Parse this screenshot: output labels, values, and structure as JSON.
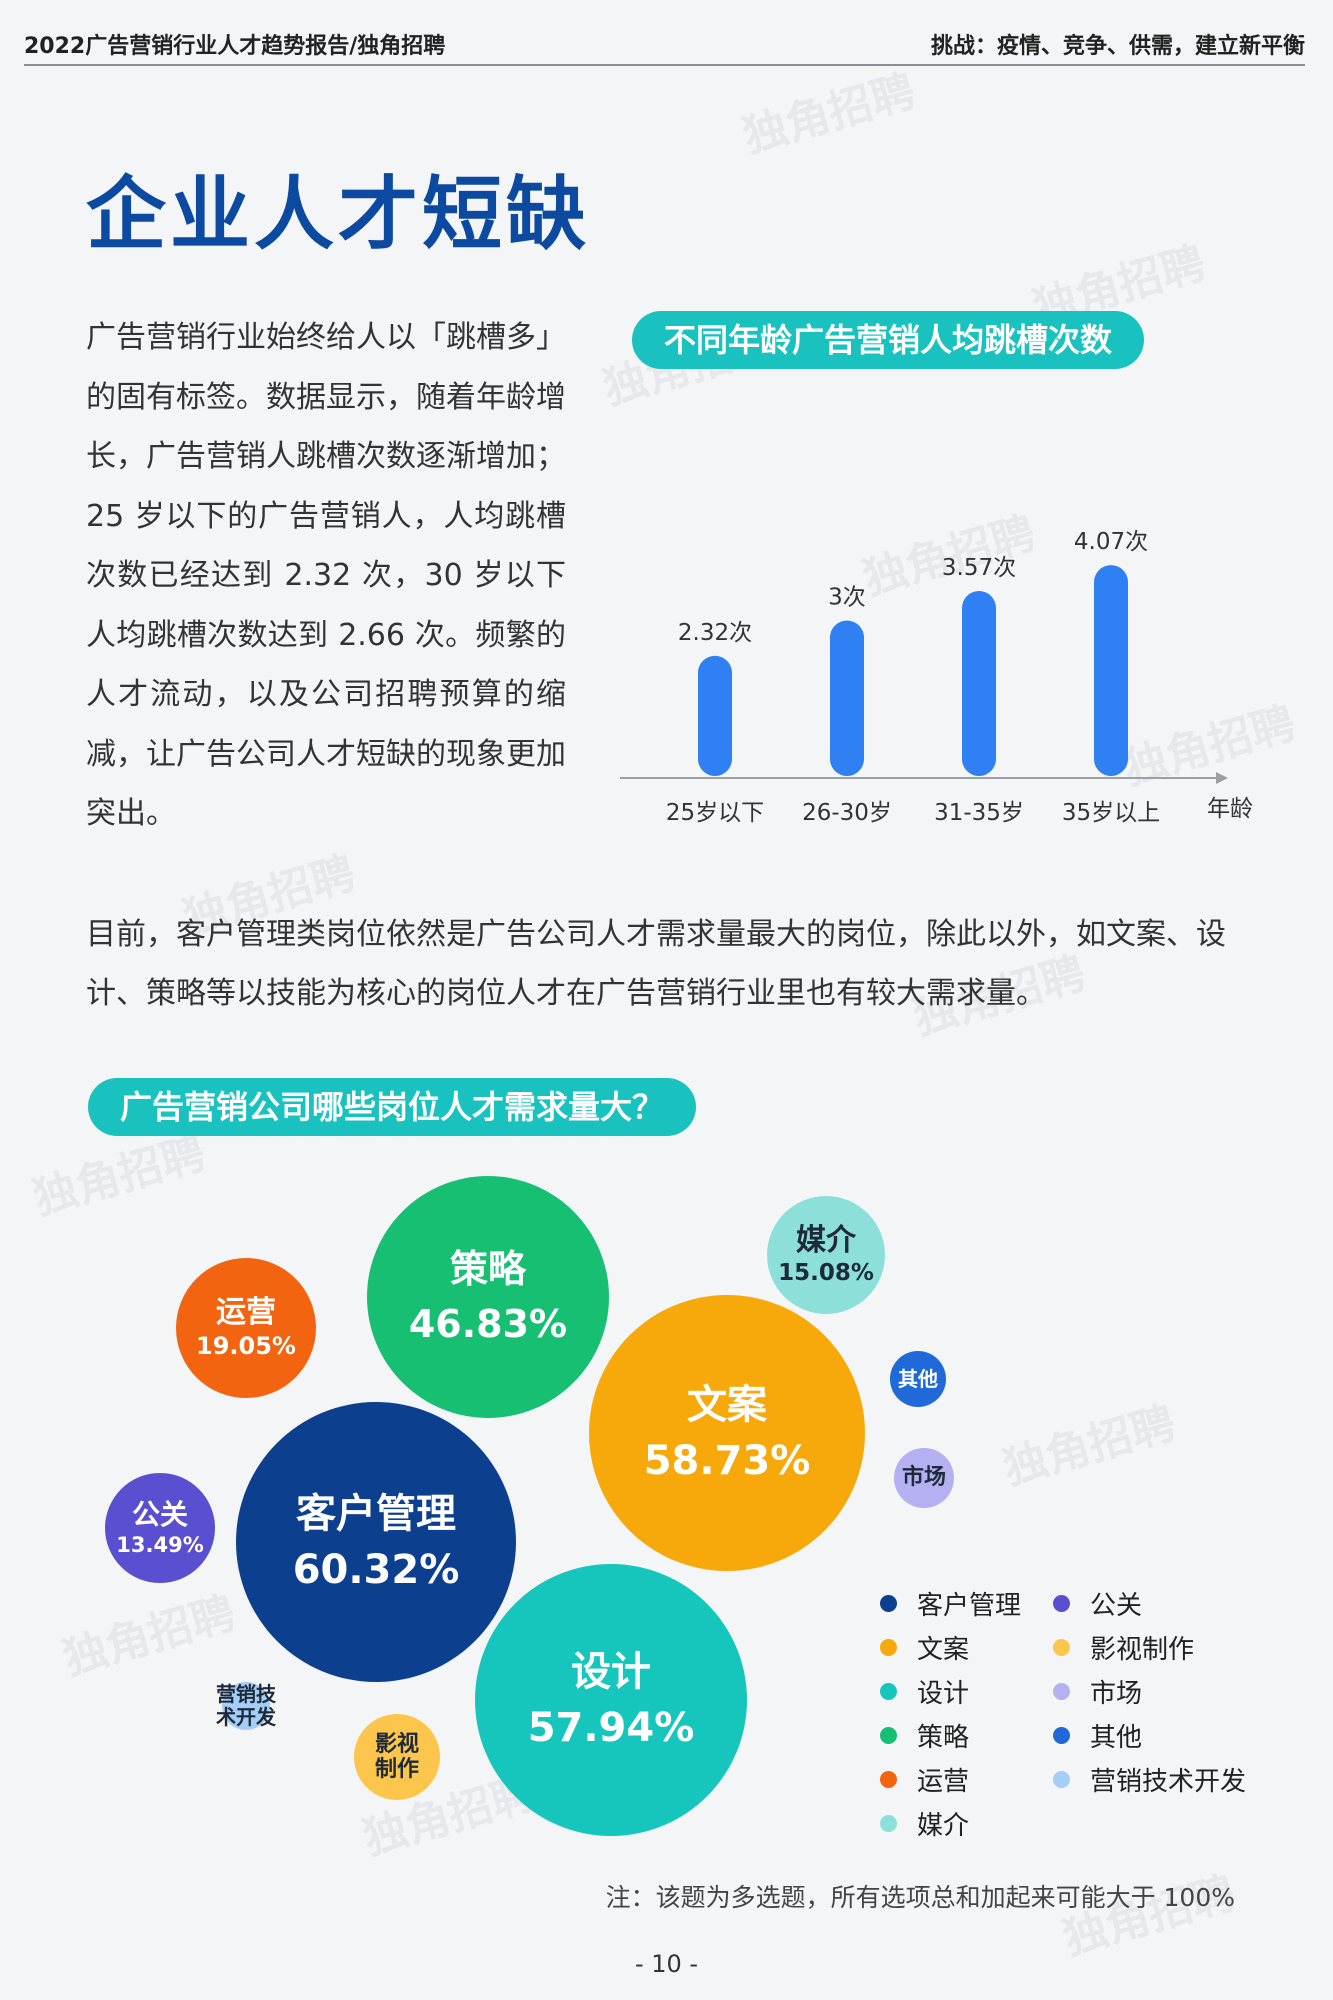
{
  "header": {
    "left_title": "2022广告营销行业人才趋势报告/独角招聘",
    "right_title": "挑战：疫情、竞争、供需，建立新平衡"
  },
  "page_title": "企业人才短缺",
  "intro_text": "广告营销行业始终给人以「跳槽多」的固有标签。数据显示，随着年龄增长，广告营销人跳槽次数逐渐增加；25 岁以下的广告营销人，人均跳槽次数已经达到 2.32 次，30 岁以下人均跳槽次数达到 2.66 次。频繁的人才流动，以及公司招聘预算的缩减，让广告公司人才短缺的现象更加突出。",
  "watermark": "独角招聘",
  "chart1_title": "不同年龄广告营销人均跳槽次数",
  "mid_text": "目前，客户管理类岗位依然是广告公司人才需求量最大的岗位，除此以外，如文案、设计、策略等以技能为核心的岗位人才在广告营销行业里也有较大需求量。",
  "chart2_title": "广告营销公司哪些岗位人才需求量大？",
  "note": "注：该题为多选题，所有选项总和加起来可能大于 100%",
  "page_number": "- 10 -",
  "chart_data": [
    {
      "type": "bar",
      "title": "不同年龄广告营销人均跳槽次数",
      "categories": [
        "25岁以下",
        "26-30岁",
        "31-35岁",
        "35岁以上"
      ],
      "values": [
        2.32,
        3,
        3.57,
        4.07
      ],
      "value_labels": [
        "2.32次",
        "3次",
        "3.57次",
        "4.07次"
      ],
      "xlabel": "年龄",
      "ylabel": "",
      "ylim": [
        0,
        4.4
      ],
      "bar_color": "#2f80f2",
      "grid": false
    },
    {
      "type": "bubble",
      "title": "广告营销公司哪些岗位人才需求量大？",
      "items": [
        {
          "name": "客户管理",
          "value": 60.32,
          "label": "60.32%",
          "color": "#0d3f8f"
        },
        {
          "name": "文案",
          "value": 58.73,
          "label": "58.73%",
          "color": "#f7a90c"
        },
        {
          "name": "设计",
          "value": 57.94,
          "label": "57.94%",
          "color": "#16c6bc"
        },
        {
          "name": "策略",
          "value": 46.83,
          "label": "46.83%",
          "color": "#16bf72"
        },
        {
          "name": "运营",
          "value": 19.05,
          "label": "19.05%",
          "color": "#f2640f"
        },
        {
          "name": "媒介",
          "value": 15.08,
          "label": "15.08%",
          "color": "#8de0d9",
          "text_color": "#1e2a3a"
        },
        {
          "name": "公关",
          "value": 13.49,
          "label": "13.49%",
          "color": "#5a4fd1"
        },
        {
          "name": "影视制作",
          "label": "",
          "color": "#fbc64b",
          "text_color": "#1e2a3a"
        },
        {
          "name": "市场",
          "label": "",
          "color": "#b4b0f2",
          "text_color": "#1e2a3a"
        },
        {
          "name": "其他",
          "label": "",
          "color": "#1f6ad8"
        },
        {
          "name": "营销技术开发",
          "label": "",
          "color": "#a4cdf7",
          "text_color": "#1e2a3a"
        }
      ],
      "legend": [
        "客户管理",
        "公关",
        "文案",
        "影视制作",
        "设计",
        "市场",
        "策略",
        "其他",
        "运营",
        "营销技术开发",
        "媒介"
      ],
      "legend_placement": "bottom-right"
    }
  ]
}
